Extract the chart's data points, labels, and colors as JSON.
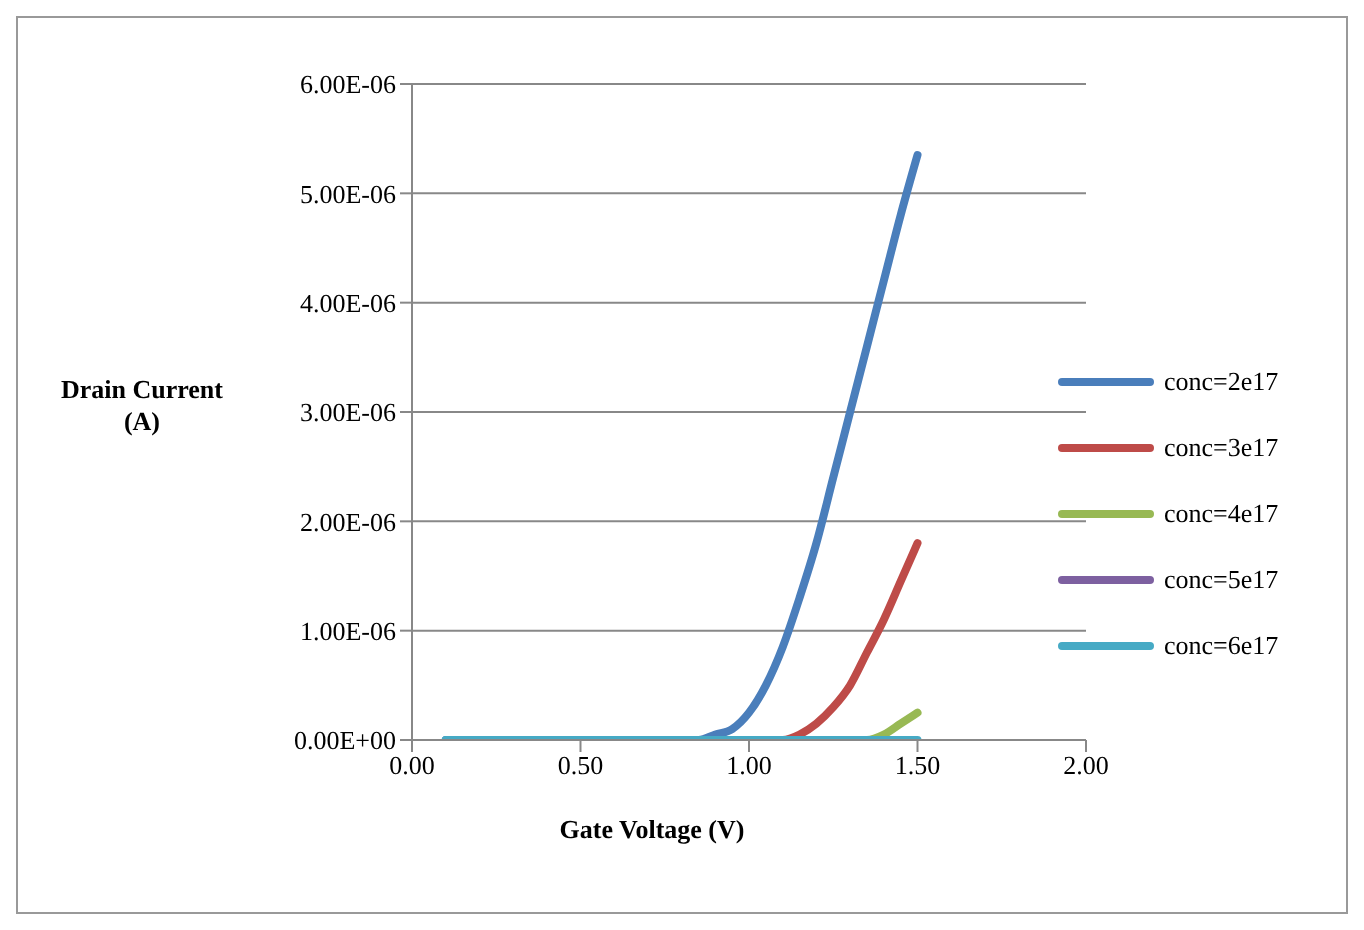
{
  "chart_data": {
    "type": "line",
    "xlabel": "Gate Voltage (V)",
    "ylabel": "Drain Current (A)",
    "x": [
      0.1,
      0.15,
      0.2,
      0.25,
      0.3,
      0.35,
      0.4,
      0.45,
      0.5,
      0.55,
      0.6,
      0.65,
      0.7,
      0.75,
      0.8,
      0.85,
      0.9,
      0.95,
      1.0,
      1.05,
      1.1,
      1.15,
      1.2,
      1.25,
      1.3,
      1.35,
      1.4,
      1.45,
      1.5
    ],
    "series": [
      {
        "name": "conc=2e17",
        "color": "#4a7ebb",
        "values": [
          0,
          0,
          0,
          0,
          0,
          0,
          0,
          0,
          0,
          0,
          0,
          0,
          0,
          0,
          0,
          0,
          5e-08,
          1e-07,
          2.5e-07,
          5e-07,
          8.5e-07,
          1.3e-06,
          1.8e-06,
          2.4e-06,
          3e-06,
          3.6e-06,
          4.2e-06,
          4.8e-06,
          5.35e-06
        ]
      },
      {
        "name": "conc=3e17",
        "color": "#be4b48",
        "values": [
          null,
          null,
          null,
          null,
          null,
          null,
          null,
          null,
          null,
          null,
          null,
          null,
          null,
          null,
          null,
          null,
          null,
          null,
          null,
          0,
          0,
          5e-08,
          1.5e-07,
          3e-07,
          5e-07,
          8e-07,
          1.1e-06,
          1.45e-06,
          1.8e-06
        ]
      },
      {
        "name": "conc=4e17",
        "color": "#98b954",
        "values": [
          null,
          null,
          null,
          null,
          null,
          null,
          null,
          null,
          null,
          null,
          null,
          null,
          null,
          null,
          null,
          null,
          null,
          null,
          null,
          null,
          null,
          null,
          null,
          null,
          0,
          0,
          5e-08,
          1.5e-07,
          2.5e-07
        ]
      },
      {
        "name": "conc=5e17",
        "color": "#7d60a0",
        "values": [
          null,
          null,
          null,
          null,
          null,
          null,
          null,
          null,
          null,
          null,
          null,
          null,
          null,
          null,
          null,
          null,
          null,
          null,
          null,
          null,
          null,
          null,
          null,
          null,
          null,
          null,
          null,
          null,
          null
        ]
      },
      {
        "name": "conc=6e17",
        "color": "#46aac5",
        "values": [
          0,
          0,
          0,
          0,
          0,
          0,
          0,
          0,
          0,
          0,
          0,
          0,
          0,
          0,
          0,
          0,
          0,
          0,
          0,
          0,
          0,
          0,
          0,
          0,
          0,
          0,
          0,
          0,
          0
        ]
      }
    ],
    "xlim": [
      0,
      2
    ],
    "xticks": [
      {
        "value": 0,
        "label": "0.00"
      },
      {
        "value": 0.5,
        "label": "0.50"
      },
      {
        "value": 1,
        "label": "1.00"
      },
      {
        "value": 1.5,
        "label": "1.50"
      },
      {
        "value": 2,
        "label": "2.00"
      }
    ],
    "ylim": [
      0,
      6e-06
    ],
    "yticks": [
      {
        "value": 0,
        "label": "0.00E+00"
      },
      {
        "value": 1e-06,
        "label": "1.00E-06"
      },
      {
        "value": 2e-06,
        "label": "2.00E-06"
      },
      {
        "value": 3e-06,
        "label": "3.00E-06"
      },
      {
        "value": 4e-06,
        "label": "4.00E-06"
      },
      {
        "value": 5e-06,
        "label": "5.00E-06"
      },
      {
        "value": 6e-06,
        "label": "6.00E-06"
      }
    ],
    "grid": "y",
    "legend": "right",
    "marker": "none",
    "line_style": "solid"
  }
}
